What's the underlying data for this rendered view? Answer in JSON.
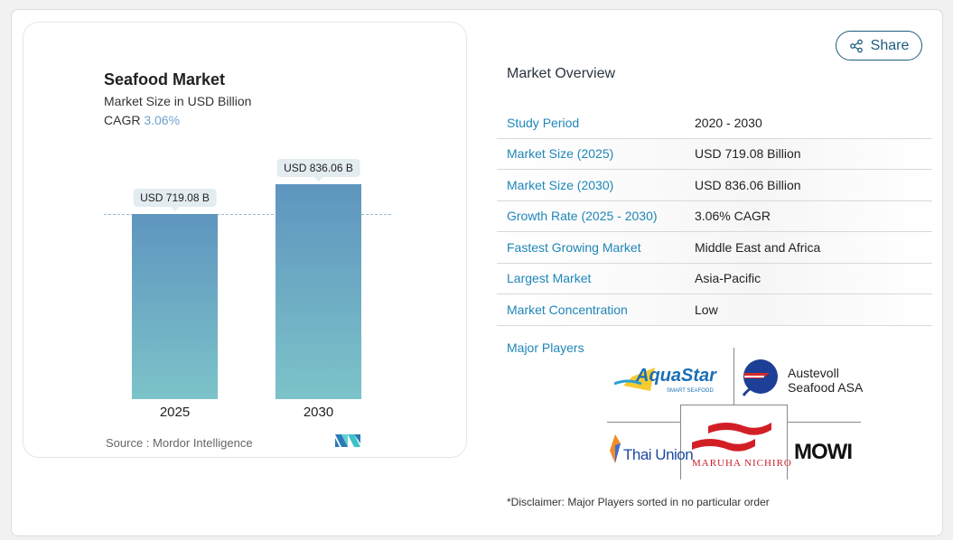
{
  "chart_card": {
    "title": "Seafood Market",
    "subtitle": "Market Size in USD Billion",
    "cagr_label": "CAGR",
    "cagr_value": "3.06%",
    "source": "Source :  Mordor Intelligence",
    "logo_text": "MI"
  },
  "chart_data": {
    "type": "bar",
    "categories": [
      "2025",
      "2030"
    ],
    "values": [
      719.08,
      836.06
    ],
    "data_labels": [
      "USD 719.08 B",
      "USD 836.06 B"
    ],
    "title": "Seafood Market",
    "ylabel": "Market Size in USD Billion",
    "ylim": [
      0,
      836.06
    ],
    "grid": false,
    "colors": [
      "#5f95bf",
      "#7cc3c9"
    ]
  },
  "share": {
    "label": "Share",
    "icon": "share-icon"
  },
  "overview": {
    "title": "Market Overview",
    "rows": [
      {
        "label": "Study Period",
        "value": "2020 - 2030"
      },
      {
        "label": "Market Size (2025)",
        "value": "USD 719.08 Billion"
      },
      {
        "label": "Market Size (2030)",
        "value": "USD 836.06 Billion"
      },
      {
        "label": "Growth Rate (2025 - 2030)",
        "value": "3.06% CAGR"
      },
      {
        "label": "Fastest Growing Market",
        "value": "Middle East and Africa"
      },
      {
        "label": "Largest Market",
        "value": "Asia-Pacific"
      },
      {
        "label": "Market Concentration",
        "value": "Low"
      }
    ],
    "major_players_label": "Major Players",
    "players": [
      {
        "name": "AquaStar",
        "tagline": "SMART SEAFOOD"
      },
      {
        "name": "Austevoll Seafood ASA"
      },
      {
        "name": "Thai Union"
      },
      {
        "name": "MARUHA NICHIRO"
      },
      {
        "name": "MOWI"
      }
    ],
    "disclaimer": "*Disclaimer: Major Players sorted in no particular order"
  }
}
